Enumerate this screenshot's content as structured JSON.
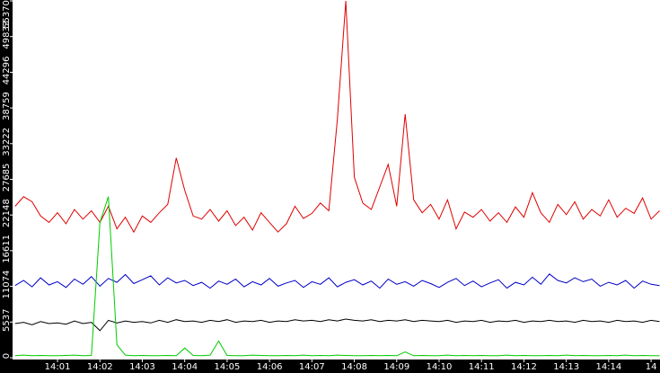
{
  "chart_data": {
    "type": "line",
    "x": [
      0,
      0.2,
      0.4,
      0.6,
      0.8,
      1,
      1.2,
      1.4,
      1.6,
      1.8,
      2,
      2.2,
      2.4,
      2.6,
      2.8,
      3,
      3.2,
      3.4,
      3.6,
      3.8,
      4,
      4.2,
      4.4,
      4.6,
      4.8,
      5,
      5.2,
      5.4,
      5.6,
      5.8,
      6,
      6.2,
      6.4,
      6.6,
      6.8,
      7,
      7.2,
      7.4,
      7.6,
      7.8,
      8,
      8.2,
      8.4,
      8.6,
      8.8,
      9,
      9.2,
      9.4,
      9.6,
      9.8,
      10,
      10.2,
      10.4,
      10.6,
      10.8,
      11,
      11.2,
      11.4,
      11.6,
      11.8,
      12,
      12.2,
      12.4,
      12.6,
      12.8,
      13,
      13.2,
      13.4,
      13.6,
      13.8,
      14,
      14.2,
      14.4,
      14.6,
      14.8,
      15,
      15.2
    ],
    "series": [
      {
        "color": "#e00000",
        "values": [
          23500,
          25000,
          24200,
          22000,
          21000,
          22500,
          20800,
          23000,
          21500,
          22800,
          21000,
          23500,
          20000,
          21800,
          19500,
          22000,
          21000,
          22500,
          23800,
          31000,
          26000,
          22000,
          21500,
          23000,
          21200,
          22800,
          20500,
          21800,
          19800,
          22500,
          21000,
          19500,
          20800,
          23500,
          21600,
          22400,
          24000,
          22800,
          37000,
          55370,
          28000,
          24000,
          23000,
          26500,
          30000,
          23500,
          37800,
          24500,
          22500,
          23800,
          21500,
          24500,
          20000,
          22600,
          21800,
          23000,
          21200,
          22500,
          21000,
          23400,
          21800,
          25600,
          22500,
          21000,
          23800,
          22200,
          24200,
          21500,
          23000,
          22000,
          24500,
          21800,
          23200,
          22400,
          24800,
          21500,
          22800
        ]
      },
      {
        "color": "#0000c8",
        "values": [
          11200,
          12000,
          11000,
          12400,
          11300,
          11800,
          10900,
          12200,
          11400,
          12600,
          11100,
          12300,
          11700,
          12900,
          11500,
          12100,
          12700,
          11300,
          12400,
          11600,
          12000,
          11200,
          11700,
          10800,
          11900,
          11400,
          12200,
          11000,
          11800,
          11300,
          12300,
          11100,
          11600,
          12000,
          10900,
          11800,
          11400,
          12400,
          11000,
          11700,
          12100,
          11300,
          11900,
          10800,
          12200,
          11400,
          11800,
          11100,
          12000,
          11500,
          10900,
          11700,
          12300,
          11200,
          11900,
          11000,
          11600,
          12100,
          10800,
          11700,
          11300,
          12500,
          11400,
          13000,
          12000,
          11600,
          12400,
          11800,
          12200,
          11100,
          11700,
          11300,
          12000,
          10800,
          11900,
          11400,
          11200
        ]
      },
      {
        "color": "#000000",
        "values": [
          5300,
          5500,
          5100,
          5600,
          5300,
          5400,
          5200,
          5700,
          5300,
          5500,
          4200,
          5800,
          5400,
          5700,
          5500,
          5600,
          5400,
          5800,
          5500,
          5900,
          5600,
          5700,
          5500,
          5800,
          5600,
          5900,
          5500,
          5700,
          5600,
          5800,
          5500,
          5700,
          5600,
          5900,
          5700,
          5800,
          5600,
          5900,
          5700,
          6000,
          5800,
          5700,
          5900,
          5600,
          5800,
          5700,
          5900,
          5600,
          5800,
          5700,
          5600,
          5800,
          5500,
          5700,
          5600,
          5800,
          5500,
          5700,
          5600,
          5800,
          5500,
          5700,
          5600,
          5800,
          5600,
          5700,
          5500,
          5800,
          5600,
          5700,
          5500,
          5800,
          5600,
          5700,
          5500,
          5800,
          5600
        ]
      },
      {
        "color": "#00cc00",
        "values": [
          300,
          400,
          300,
          350,
          300,
          300,
          350,
          400,
          300,
          350,
          21000,
          25000,
          2000,
          400,
          300,
          350,
          300,
          300,
          350,
          300,
          1500,
          350,
          300,
          400,
          2600,
          350,
          300,
          300,
          400,
          350,
          300,
          300,
          350,
          300,
          400,
          300,
          350,
          300,
          400,
          350,
          300,
          300,
          350,
          300,
          350,
          300,
          900,
          300,
          350,
          300,
          300,
          400,
          300,
          350,
          300,
          350,
          300,
          300,
          400,
          300,
          350,
          300,
          300,
          350,
          300,
          400,
          300,
          350,
          300,
          300,
          350,
          300,
          400,
          300,
          350,
          300,
          300
        ]
      }
    ],
    "xlim": [
      -0.06,
      15.21
    ],
    "xticks": [
      {
        "value": 1,
        "label": "14:01"
      },
      {
        "value": 2,
        "label": "14:02"
      },
      {
        "value": 3,
        "label": "14:03"
      },
      {
        "value": 4,
        "label": "14:04"
      },
      {
        "value": 5,
        "label": "14:05"
      },
      {
        "value": 6,
        "label": "14:06"
      },
      {
        "value": 7,
        "label": "14:07"
      },
      {
        "value": 8,
        "label": "14:08"
      },
      {
        "value": 9,
        "label": "14:09"
      },
      {
        "value": 10,
        "label": "14:10"
      },
      {
        "value": 11,
        "label": "14:11"
      },
      {
        "value": 12,
        "label": "14:12"
      },
      {
        "value": 13,
        "label": "14:13"
      },
      {
        "value": 14,
        "label": "14:14"
      },
      {
        "value": 15,
        "label": "14"
      }
    ],
    "ylim": [
      0,
      55370
    ],
    "yticks": [
      0,
      5537,
      11074,
      16611,
      22148,
      27685,
      33222,
      38759,
      44296,
      49833,
      55370
    ]
  }
}
